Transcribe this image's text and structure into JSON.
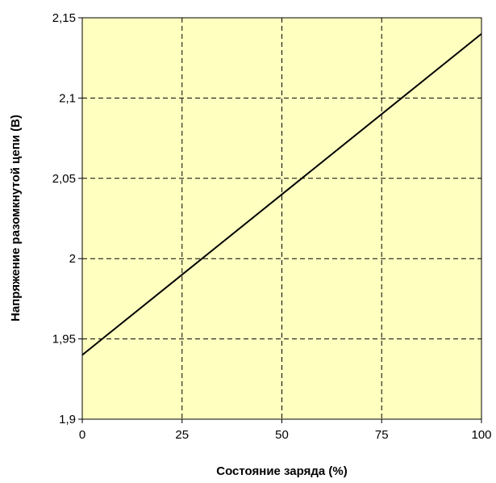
{
  "chart_data": {
    "type": "line",
    "xlabel": "Состояние заряда (%)",
    "ylabel": "Напряжение разомкнутой цепи (В)",
    "xlim": [
      0,
      100
    ],
    "ylim": [
      1.9,
      2.15
    ],
    "x_ticks": [
      0,
      25,
      50,
      75,
      100
    ],
    "x_tick_labels": [
      "0",
      "25",
      "50",
      "75",
      "100"
    ],
    "y_ticks": [
      1.9,
      1.95,
      2.0,
      2.05,
      2.1,
      2.15
    ],
    "y_tick_labels": [
      "1,9",
      "1,95",
      "2",
      "2,05",
      "2,1",
      "2,15"
    ],
    "grid": true,
    "grid_style": "dashed",
    "series": [
      {
        "x": [
          0,
          100
        ],
        "y": [
          1.94,
          2.14
        ]
      }
    ]
  },
  "colors": {
    "plot_background": "#ffffc0",
    "line": "#000000",
    "grid": "#000000"
  }
}
